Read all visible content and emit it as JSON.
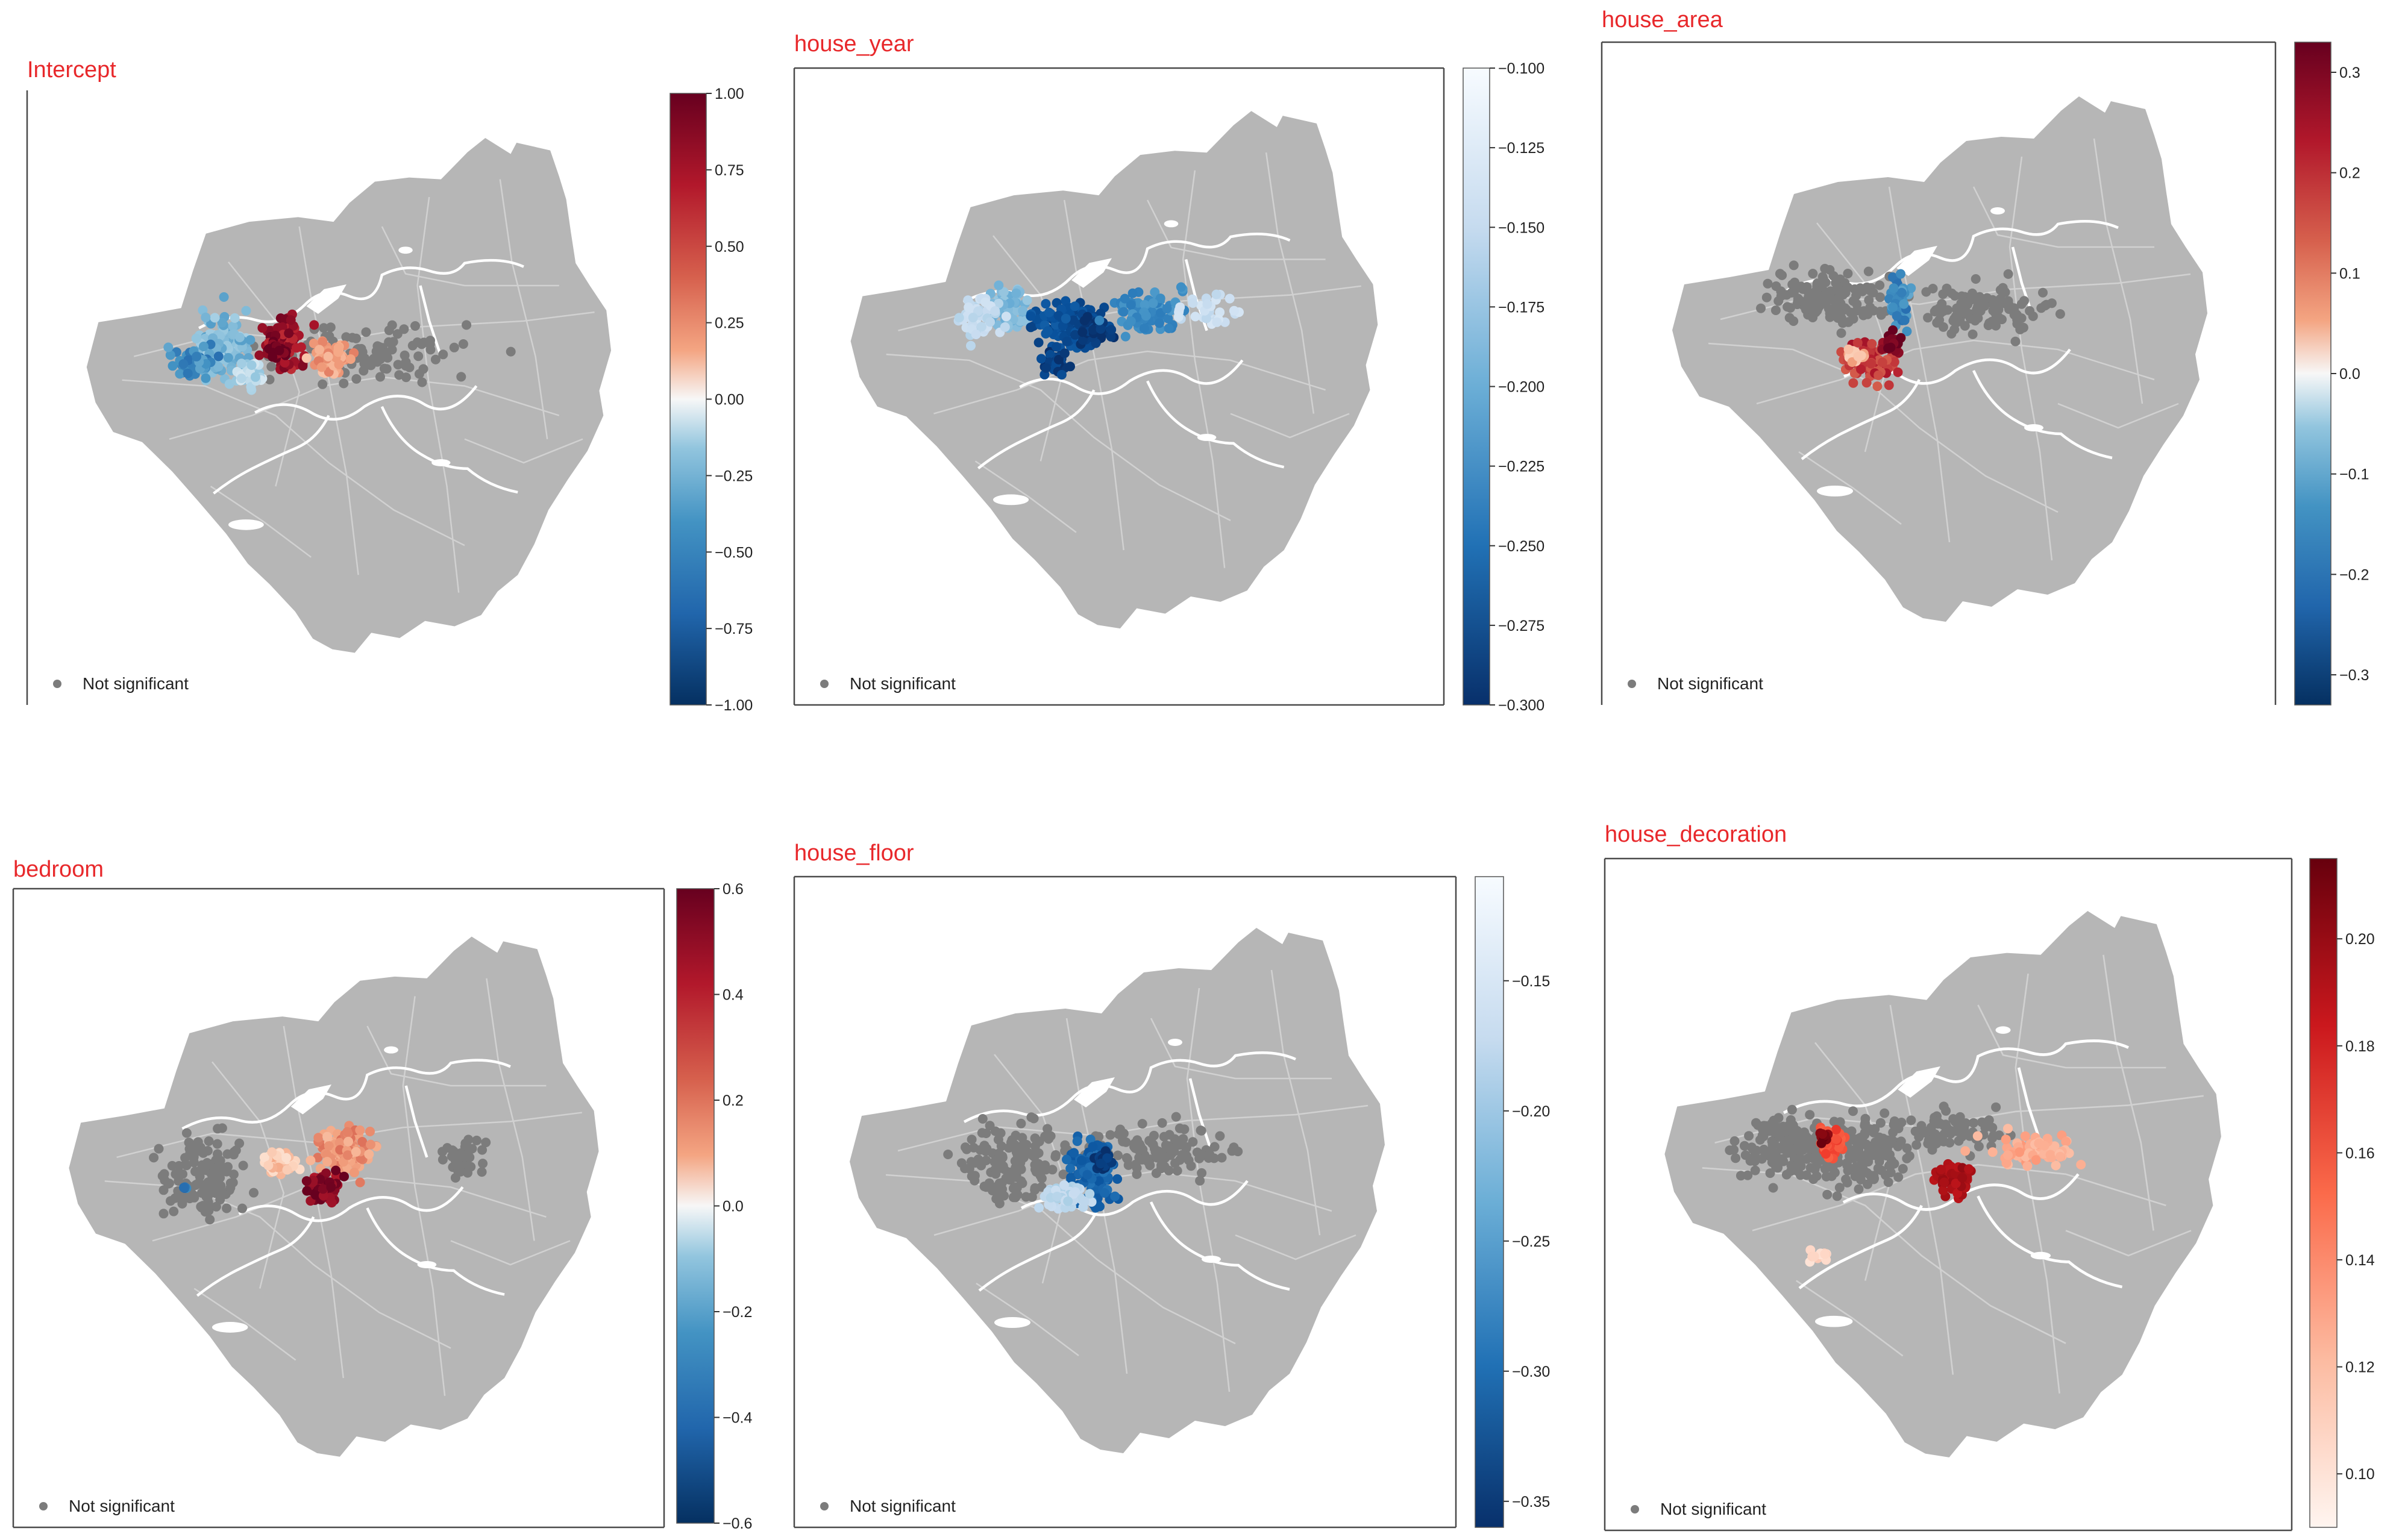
{
  "figure": {
    "legend_label": "Not significant",
    "colors": {
      "map_fill": "#b6b6b6",
      "road": "#d6d6d6",
      "river": "#ffffff",
      "not_significant": "#7c7c7c",
      "title": "#e8282b"
    }
  },
  "panels": [
    {
      "title": "Intercept",
      "colormap": "RdBu_r",
      "colorbar": {
        "min": -1.0,
        "max": 1.0,
        "ticks": [
          "1.00",
          "0.75",
          "0.50",
          "0.25",
          "0.00",
          "−0.25",
          "−0.50",
          "−0.75",
          "−1.00"
        ]
      }
    },
    {
      "title": "house_year",
      "colormap": "Blues_r",
      "colorbar": {
        "min": -0.3,
        "max": -0.1,
        "ticks": [
          "−0.100",
          "−0.125",
          "−0.150",
          "−0.175",
          "−0.200",
          "−0.225",
          "−0.250",
          "−0.275",
          "−0.300"
        ]
      }
    },
    {
      "title": "house_area",
      "colormap": "RdBu_r",
      "colorbar": {
        "min": -0.33,
        "max": 0.33,
        "ticks": [
          "0.3",
          "0.2",
          "0.1",
          "0.0",
          "−0.1",
          "−0.2",
          "−0.3"
        ]
      }
    },
    {
      "title": "bedroom",
      "colormap": "RdBu_r",
      "colorbar": {
        "min": -0.6,
        "max": 0.6,
        "ticks": [
          "0.6",
          "0.4",
          "0.2",
          "0.0",
          "−0.2",
          "−0.4",
          "−0.6"
        ]
      }
    },
    {
      "title": "house_floor",
      "colormap": "Blues_r",
      "colorbar": {
        "min": -0.36,
        "max": -0.11,
        "ticks": [
          "−0.15",
          "−0.20",
          "−0.25",
          "−0.30",
          "−0.35"
        ]
      }
    },
    {
      "title": "house_decoration",
      "colormap": "Reds",
      "colorbar": {
        "min": 0.09,
        "max": 0.215,
        "ticks": [
          "0.20",
          "0.18",
          "0.16",
          "0.14",
          "0.12",
          "0.10"
        ]
      }
    }
  ]
}
